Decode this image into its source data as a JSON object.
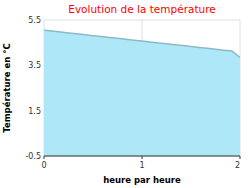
{
  "chart_data": {
    "type": "area",
    "title": "Evolution de la température",
    "title_color": "#ff0000",
    "x_label": "heure par heure",
    "y_label": "Température en °C",
    "x": [
      0,
      0.083,
      0.167,
      0.25,
      0.333,
      0.417,
      0.5,
      0.583,
      0.667,
      0.75,
      0.833,
      0.917,
      1.0,
      1.083,
      1.167,
      1.25,
      1.333,
      1.417,
      1.5,
      1.583,
      1.667,
      1.75,
      1.833,
      1.917,
      2.0
    ],
    "values": [
      5.05,
      5.01,
      4.97,
      4.93,
      4.89,
      4.85,
      4.81,
      4.77,
      4.73,
      4.69,
      4.65,
      4.61,
      4.57,
      4.53,
      4.49,
      4.45,
      4.41,
      4.37,
      4.33,
      4.29,
      4.25,
      4.21,
      4.17,
      4.13,
      3.85
    ],
    "color": "#aee8f8",
    "xlim": [
      0,
      2
    ],
    "ylim": [
      -0.5,
      5.5
    ],
    "xticks": [
      0,
      1,
      2
    ],
    "yticks": [
      -0.5,
      1.5,
      3.5,
      5.5
    ],
    "grid": true
  }
}
